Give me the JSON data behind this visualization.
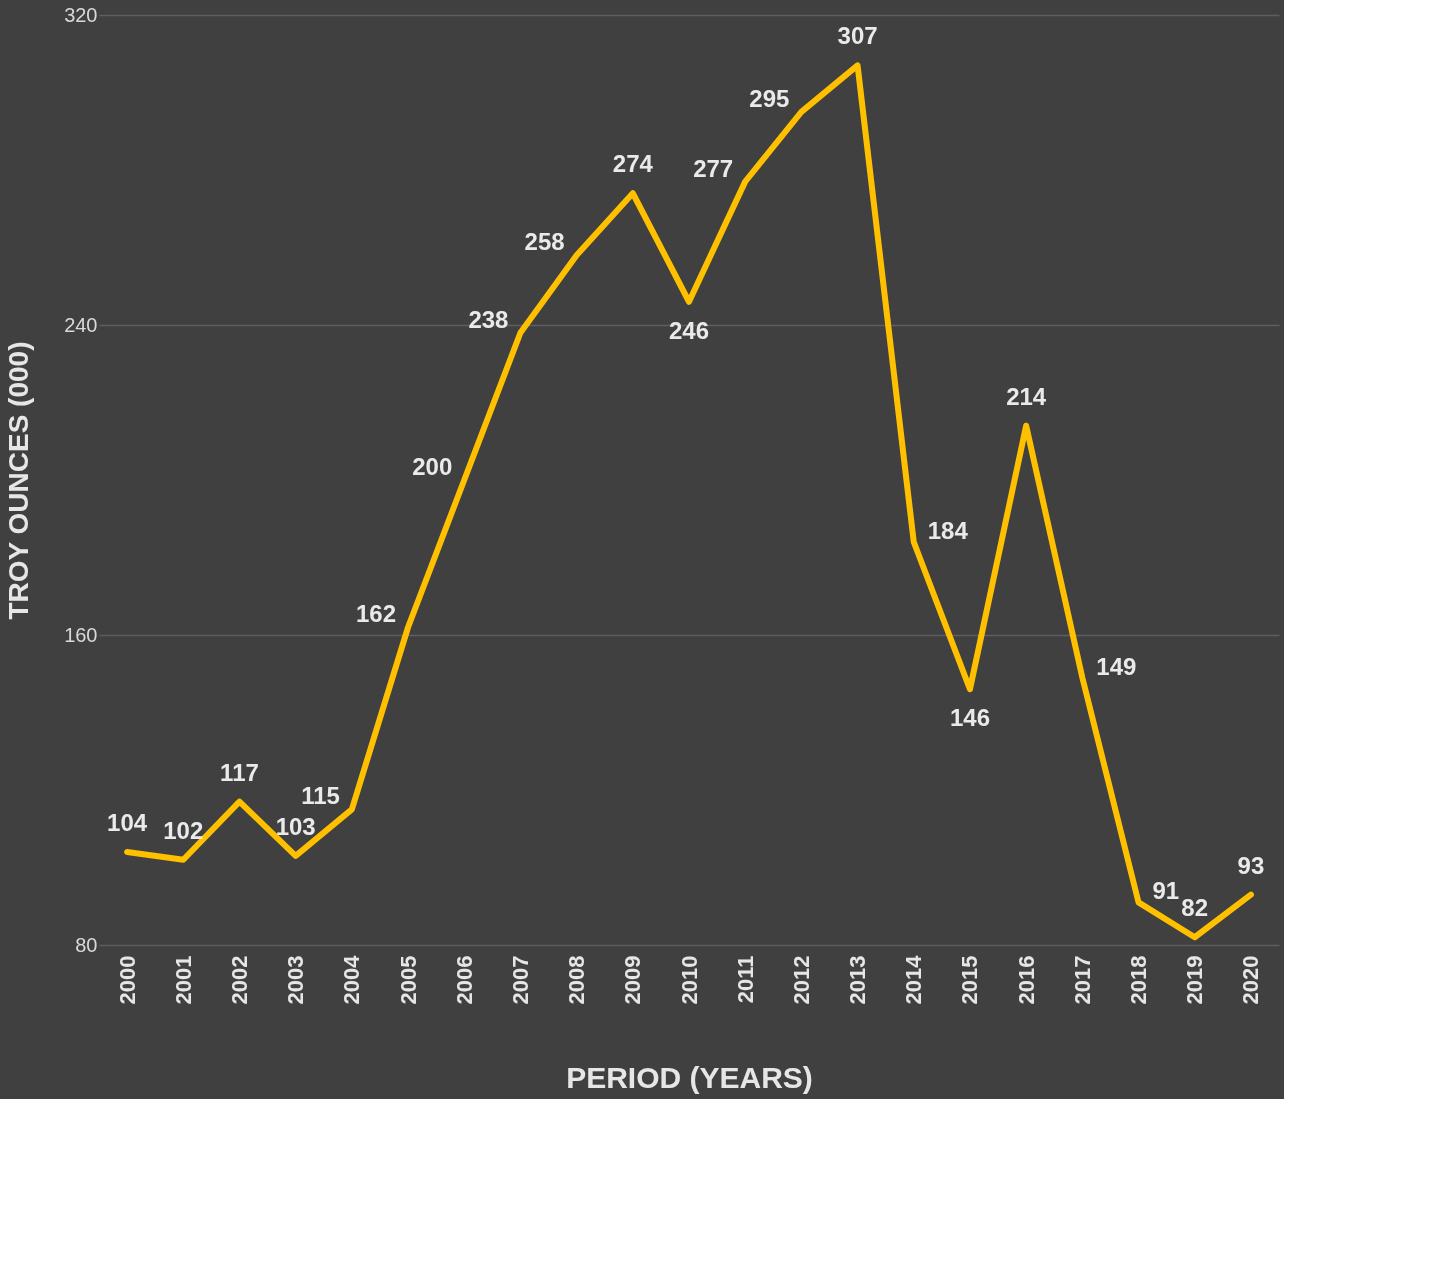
{
  "chart_data": {
    "type": "line",
    "xlabel": "PERIOD (YEARS)",
    "ylabel": "TROY OUNCES (000)",
    "categories": [
      "2000",
      "2001",
      "2002",
      "2003",
      "2004",
      "2005",
      "2006",
      "2007",
      "2008",
      "2009",
      "2010",
      "2011",
      "2012",
      "2013",
      "2014",
      "2015",
      "2016",
      "2017",
      "2018",
      "2019",
      "2020"
    ],
    "series": [
      {
        "color": "#ffc000",
        "values": [
          104,
          102,
          117,
          103,
          115,
          162,
          200,
          238,
          258,
          274,
          246,
          277,
          295,
          307,
          184,
          146,
          214,
          149,
          91,
          82,
          93
        ]
      }
    ],
    "ylim": [
      80,
      320
    ],
    "yticks": [
      80,
      160,
      240,
      320
    ],
    "grid": "y",
    "data_labels": true,
    "marker": "none",
    "line_style": "solid"
  }
}
